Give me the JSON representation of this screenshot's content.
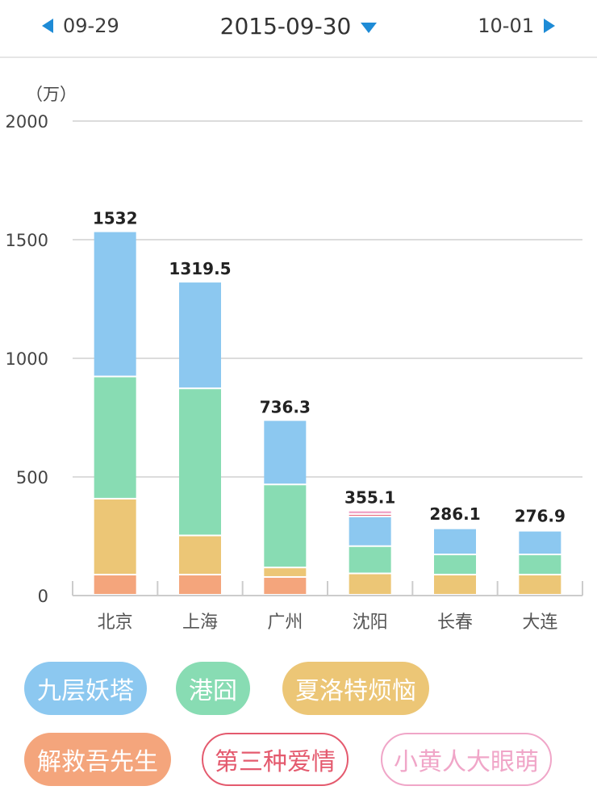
{
  "nav": {
    "prev_date": "09-29",
    "current_date": "2015-09-30",
    "next_date": "10-01",
    "prev_icon": "triangle-left-icon",
    "next_icon": "triangle-right-icon",
    "dropdown_icon": "triangle-down-icon",
    "accent_color": "#1e8bd6"
  },
  "chart_data": {
    "type": "bar",
    "stacked": true,
    "unit_label": "（万）",
    "categories": [
      "北京",
      "上海",
      "广州",
      "沈阳",
      "长春",
      "大连"
    ],
    "ylim": [
      0,
      2000
    ],
    "yticks": [
      0,
      500,
      1000,
      1500,
      2000
    ],
    "grid": true,
    "totals": [
      "1532",
      "1319.5",
      "736.3",
      "355.1",
      "286.1",
      "276.9"
    ],
    "series": [
      {
        "name": "解救吾先生",
        "color": "#f4a57c",
        "values": [
          85,
          85,
          75,
          0,
          0,
          0
        ]
      },
      {
        "name": "夏洛特烦恼",
        "color": "#ecc676",
        "values": [
          320,
          165,
          40,
          90,
          85,
          85
        ]
      },
      {
        "name": "港囧",
        "color": "#88dcb3",
        "values": [
          515,
          620,
          350,
          115,
          85,
          85
        ]
      },
      {
        "name": "九层妖塔",
        "color": "#8cc8f0",
        "values": [
          612,
          449.5,
          271.3,
          125,
          110,
          100
        ]
      },
      {
        "name": "第三种爱情",
        "color": "#e45a6e",
        "values": [
          0,
          0,
          0,
          10,
          3,
          3
        ]
      },
      {
        "name": "小黄人大眼萌",
        "color": "#f0a6c8",
        "values": [
          0,
          0,
          0,
          15.1,
          3.1,
          3.9
        ]
      }
    ]
  },
  "legend": [
    {
      "label": "九层妖塔",
      "color": "#8cc8f0",
      "style": "filled"
    },
    {
      "label": "港囧",
      "color": "#88dcb3",
      "style": "filled"
    },
    {
      "label": "夏洛特烦恼",
      "color": "#ecc676",
      "style": "filled"
    },
    {
      "label": "解救吾先生",
      "color": "#f4a57c",
      "style": "filled"
    },
    {
      "label": "第三种爱情",
      "color": "#e45a6e",
      "style": "outline"
    },
    {
      "label": "小黄人大眼萌",
      "color": "#f0a6c8",
      "style": "outline"
    }
  ]
}
